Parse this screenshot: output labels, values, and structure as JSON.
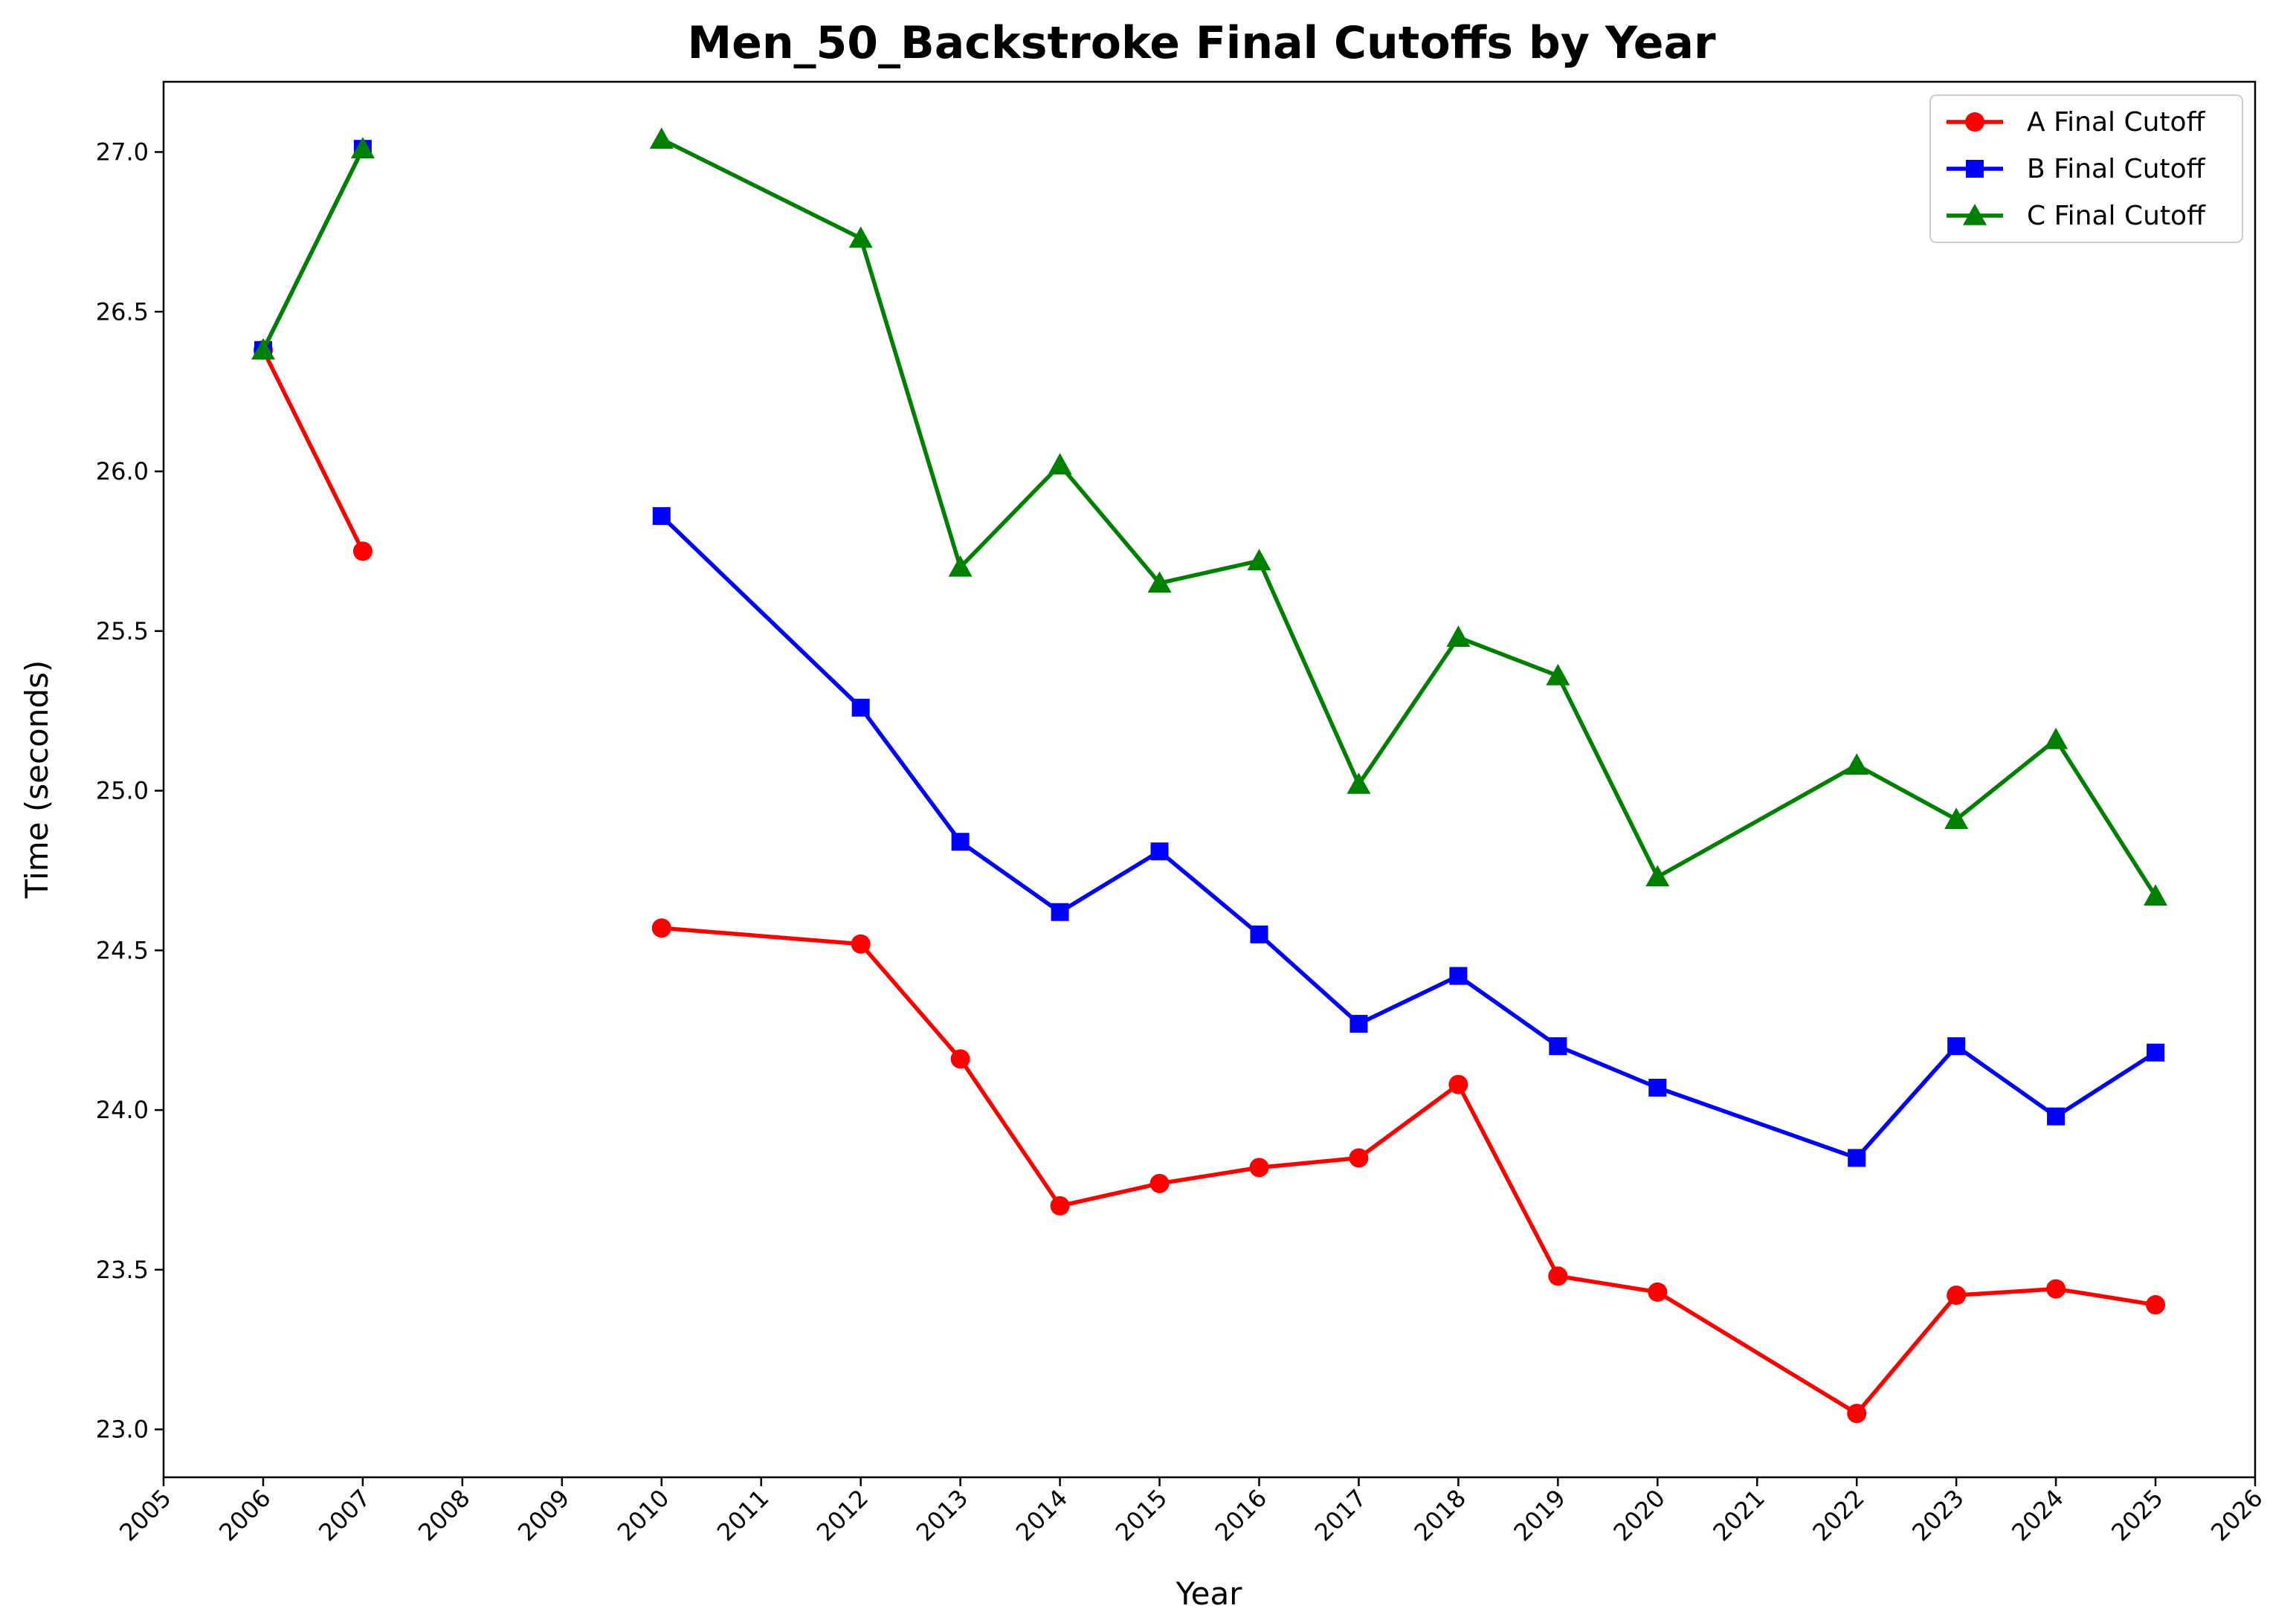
{
  "chart_data": {
    "type": "line",
    "title": "Men_50_Backstroke Final Cutoffs by Year",
    "xlabel": "Year",
    "ylabel": "Time (seconds)",
    "xlim": [
      2005,
      2026
    ],
    "ylim": [
      22.85,
      27.22
    ],
    "x_ticks": [
      "2005",
      "2006",
      "2007",
      "2008",
      "2009",
      "2010",
      "2011",
      "2012",
      "2013",
      "2014",
      "2015",
      "2016",
      "2017",
      "2018",
      "2019",
      "2020",
      "2021",
      "2022",
      "2023",
      "2024",
      "2025",
      "2026"
    ],
    "y_ticks": [
      "23.0",
      "23.5",
      "24.0",
      "24.5",
      "25.0",
      "25.5",
      "26.0",
      "26.5",
      "27.0"
    ],
    "legend_position": "top-right",
    "grid": false,
    "x": [
      2006,
      2007,
      2010,
      2012,
      2013,
      2014,
      2015,
      2016,
      2017,
      2018,
      2019,
      2020,
      2022,
      2023,
      2024,
      2025
    ],
    "series": [
      {
        "name": "A Final Cutoff",
        "color": "#ff0000",
        "marker": "circle",
        "values": [
          26.38,
          25.75,
          24.57,
          24.52,
          24.16,
          23.7,
          23.77,
          23.82,
          23.85,
          24.08,
          23.48,
          23.43,
          23.05,
          23.42,
          23.44,
          23.39
        ]
      },
      {
        "name": "B Final Cutoff",
        "color": "#0000ff",
        "marker": "square",
        "values": [
          26.38,
          27.01,
          25.86,
          25.26,
          24.84,
          24.62,
          24.81,
          24.55,
          24.27,
          24.42,
          24.2,
          24.07,
          23.85,
          24.2,
          23.98,
          24.18
        ]
      },
      {
        "name": "C Final Cutoff",
        "color": "#008000",
        "marker": "triangle",
        "values": [
          26.38,
          27.01,
          27.04,
          26.73,
          25.7,
          26.02,
          25.65,
          25.72,
          25.02,
          25.48,
          25.36,
          24.73,
          25.08,
          24.91,
          25.16,
          24.67
        ]
      }
    ]
  }
}
